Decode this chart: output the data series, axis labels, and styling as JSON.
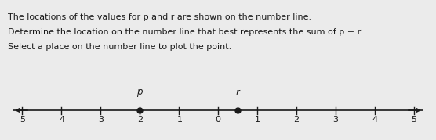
{
  "title_lines": [
    "The locations of the values for p and r are shown on the number line.",
    "Determine the location on the number line that best represents the sum of p + r.",
    "Select a place on the number line to plot the point."
  ],
  "p_value": -2,
  "r_value": 0.5,
  "x_min": -5,
  "x_max": 5,
  "tick_positions": [
    -5,
    -4,
    -3,
    -2,
    -1,
    0,
    1,
    2,
    3,
    4,
    5
  ],
  "background_color": "#ebebeb",
  "text_color": "#1a1a1a",
  "dot_color": "#1a1a1a",
  "line_color": "#1a1a1a",
  "title_fontsize": 8.0,
  "tick_fontsize": 8.0,
  "label_fontsize": 8.5
}
